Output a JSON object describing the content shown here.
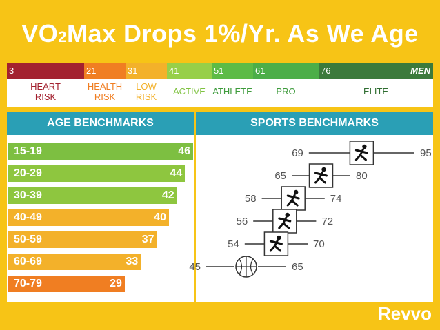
{
  "title": {
    "pre": "VO",
    "sub": "2",
    "post": "Max Drops 1%/Yr. As We Age"
  },
  "scale": {
    "men_label": "MEN",
    "segments": [
      {
        "start": "3",
        "color": "#a3212f",
        "zone": [
          "HEART",
          "RISK"
        ],
        "zone_color": "#a3212f"
      },
      {
        "start": "21",
        "color": "#f07e22",
        "zone": [
          "HEALTH",
          "RISK"
        ],
        "zone_color": "#f07e22"
      },
      {
        "start": "31",
        "color": "#f3b12a",
        "zone": [
          "LOW",
          "RISK"
        ],
        "zone_color": "#f3b12a"
      },
      {
        "start": "41",
        "color": "#97cf48",
        "zone": [
          "ACTIVE"
        ],
        "zone_color": "#7fc241"
      },
      {
        "start": "51",
        "color": "#5dbb46",
        "zone": [
          "ATHLETE"
        ],
        "zone_color": "#3e9b3c"
      },
      {
        "start": "61",
        "color": "#4cae48",
        "zone": [
          "PRO"
        ],
        "zone_color": "#3e9b3c"
      },
      {
        "start": "76",
        "color": "#3b7a3b",
        "zone": [
          "ELITE"
        ],
        "zone_color": "#2f6d31"
      }
    ]
  },
  "age_panel_title": "AGE BENCHMARKS",
  "sports_panel_title": "SPORTS BENCHMARKS",
  "brand": "Revvo",
  "chart_data": [
    {
      "type": "bar",
      "title": "AGE BENCHMARKS",
      "categories": [
        "15-19",
        "20-29",
        "30-39",
        "40-49",
        "50-59",
        "60-69",
        "70-79"
      ],
      "values": [
        46,
        44,
        42,
        40,
        37,
        33,
        29
      ],
      "colors": [
        "#7dbf41",
        "#8ec63f",
        "#8ec63f",
        "#f3b12a",
        "#f3b12a",
        "#f3b12a",
        "#f07e22"
      ]
    },
    {
      "type": "range",
      "title": "SPORTS BENCHMARKS",
      "sports": [
        {
          "icon": "runner-icon",
          "low": 69,
          "high": 95
        },
        {
          "icon": "sprinter-icon",
          "low": 65,
          "high": 80
        },
        {
          "icon": "rowing-icon",
          "low": 58,
          "high": 74
        },
        {
          "icon": "cycling-icon",
          "low": 56,
          "high": 72
        },
        {
          "icon": "swimming-icon",
          "low": 54,
          "high": 70
        },
        {
          "icon": "basketball-icon",
          "low": 45,
          "high": 65
        }
      ]
    }
  ]
}
